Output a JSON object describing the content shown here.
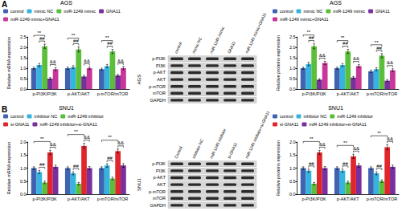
{
  "panels": [
    {
      "label": "A",
      "blot": {
        "cell_line": "AGS",
        "lanes": [
          "control",
          "mimic NC",
          "miR-1249 mimic",
          "GNA11",
          "miR-1249 mimic+GNA11"
        ],
        "rows": [
          "p-PI3K",
          "PI3K",
          "p-AKT",
          "AKT",
          "p-mTOR",
          "mTOR",
          "GAPDH"
        ]
      }
    },
    {
      "label": "B",
      "blot": {
        "cell_line": "SNU1",
        "lanes": [
          "Control",
          "inhibitor NC",
          "miR-1249 inhibitor",
          "si-GNA11",
          "miR-1249 inhibitor+si-GNA11"
        ],
        "rows": [
          "p-PI3K",
          "PI3K",
          "p-AKT",
          "AKT",
          "p-mTOR",
          "mTOR",
          "GAPDH"
        ]
      }
    }
  ],
  "chart_data": [
    {
      "type": "bar",
      "title": "AGS",
      "ylabel": "Relative mRNA expression",
      "categories": [
        "p-PI3K/PI3K",
        "p-AKT/AKT",
        "p-mTOR/mTOR"
      ],
      "series": [
        {
          "name": "control",
          "color": "#3f63b0",
          "values": [
            1.0,
            1.0,
            0.95
          ],
          "errors": [
            0.05,
            0.06,
            0.05
          ]
        },
        {
          "name": "mimic NC",
          "color": "#34b4e0",
          "values": [
            1.15,
            1.05,
            1.1
          ],
          "errors": [
            0.08,
            0.07,
            0.08
          ]
        },
        {
          "name": "miR-1249 mimic",
          "color": "#5cbf3c",
          "values": [
            2.05,
            1.9,
            1.8
          ],
          "errors": [
            0.1,
            0.12,
            0.1
          ]
        },
        {
          "name": "GNA11",
          "color": "#7a2f9e",
          "values": [
            0.5,
            0.6,
            0.65
          ],
          "errors": [
            0.05,
            0.06,
            0.05
          ]
        },
        {
          "name": "miR-1249 mimic+GNA11",
          "color": "#c8369a",
          "values": [
            0.95,
            1.0,
            1.0
          ],
          "errors": [
            0.07,
            0.06,
            0.08
          ]
        }
      ],
      "ylim": [
        0,
        2.5
      ],
      "yticks": [
        {
          "value": 0,
          "label": "0.0"
        },
        0.5,
        {
          "value": 1,
          "label": "1.0"
        },
        1.5,
        {
          "value": 2,
          "label": "2.0"
        },
        2.5
      ],
      "grid": false,
      "legend": "top",
      "annotations": [
        {
          "category": "p-PI3K/PI3K",
          "from": "control",
          "to": "miR-1249 mimic",
          "label": "**"
        },
        {
          "category": "p-PI3K/PI3K",
          "from": "mimic NC",
          "to": "miR-1249 mimic",
          "label": "##"
        },
        {
          "category": "p-PI3K/PI3K",
          "from": "GNA11",
          "to": "miR-1249 mimic+GNA11",
          "label": "&&"
        },
        {
          "category": "p-AKT/AKT",
          "from": "control",
          "to": "miR-1249 mimic",
          "label": "**"
        },
        {
          "category": "p-AKT/AKT",
          "from": "mimic NC",
          "to": "miR-1249 mimic",
          "label": "##"
        },
        {
          "category": "p-AKT/AKT",
          "from": "GNA11",
          "to": "miR-1249 mimic+GNA11",
          "label": "&&"
        },
        {
          "category": "p-mTOR/mTOR",
          "from": "control",
          "to": "miR-1249 mimic",
          "label": "**"
        },
        {
          "category": "p-mTOR/mTOR",
          "from": "mimic NC",
          "to": "miR-1249 mimic",
          "label": "##"
        },
        {
          "category": "p-mTOR/mTOR",
          "from": "GNA11",
          "to": "miR-1249 mimic+GNA11",
          "label": "&&"
        }
      ]
    },
    {
      "type": "bar",
      "title": "AGS",
      "ylabel": "Relative proteins expression",
      "categories": [
        "p-PI3K/PI3K",
        "p-AKT/AKT",
        "p-mTOR/mTOR"
      ],
      "series": [
        {
          "name": "control",
          "color": "#3f63b0",
          "values": [
            1.0,
            1.0,
            0.85
          ],
          "errors": [
            0.05,
            0.05,
            0.06
          ]
        },
        {
          "name": "mimic NC",
          "color": "#34b4e0",
          "values": [
            1.2,
            1.15,
            0.95
          ],
          "errors": [
            0.08,
            0.07,
            0.07
          ]
        },
        {
          "name": "miR-1249 mimic",
          "color": "#5cbf3c",
          "values": [
            2.05,
            1.8,
            1.6
          ],
          "errors": [
            0.12,
            0.1,
            0.1
          ]
        },
        {
          "name": "GNA11",
          "color": "#7a2f9e",
          "values": [
            0.45,
            0.55,
            0.4
          ],
          "errors": [
            0.05,
            0.05,
            0.05
          ]
        },
        {
          "name": "miR-1249 mimic+GNA11",
          "color": "#c8369a",
          "values": [
            1.25,
            1.1,
            0.9
          ],
          "errors": [
            0.08,
            0.07,
            0.07
          ]
        }
      ],
      "ylim": [
        0,
        2.5
      ],
      "yticks": [
        {
          "value": 0,
          "label": "0.0"
        },
        0.5,
        {
          "value": 1,
          "label": "1.0"
        },
        1.5,
        {
          "value": 2,
          "label": "2.0"
        },
        2.5
      ],
      "grid": false,
      "legend": "top",
      "annotations": [
        {
          "category": "p-PI3K/PI3K",
          "from": "control",
          "to": "miR-1249 mimic",
          "label": "**"
        },
        {
          "category": "p-PI3K/PI3K",
          "from": "mimic NC",
          "to": "miR-1249 mimic",
          "label": "##"
        },
        {
          "category": "p-PI3K/PI3K",
          "from": "GNA11",
          "to": "miR-1249 mimic+GNA11",
          "label": "&&"
        },
        {
          "category": "p-AKT/AKT",
          "from": "control",
          "to": "miR-1249 mimic",
          "label": "**"
        },
        {
          "category": "p-AKT/AKT",
          "from": "mimic NC",
          "to": "miR-1249 mimic",
          "label": "##"
        },
        {
          "category": "p-AKT/AKT",
          "from": "GNA11",
          "to": "miR-1249 mimic+GNA11",
          "label": "&&"
        },
        {
          "category": "p-mTOR/mTOR",
          "from": "control",
          "to": "miR-1249 mimic",
          "label": "**"
        },
        {
          "category": "p-mTOR/mTOR",
          "from": "mimic NC",
          "to": "miR-1249 mimic",
          "label": "##"
        },
        {
          "category": "p-mTOR/mTOR",
          "from": "GNA11",
          "to": "miR-1249 mimic+GNA11",
          "label": "&&"
        }
      ]
    },
    {
      "type": "bar",
      "title": "SNU1",
      "ylabel": "Relative mRNA expression",
      "categories": [
        "p-PI3K/PI3K",
        "p-AKT/AKT",
        "p-mTOR/mTOR"
      ],
      "series": [
        {
          "name": "control",
          "color": "#3f63b0",
          "values": [
            1.0,
            1.0,
            1.0
          ],
          "errors": [
            0.05,
            0.05,
            0.05
          ]
        },
        {
          "name": "inhibitor NC",
          "color": "#34b4e0",
          "values": [
            0.85,
            0.8,
            1.1
          ],
          "errors": [
            0.06,
            0.06,
            0.07
          ]
        },
        {
          "name": "miR-1249 inhibitor",
          "color": "#5cbf3c",
          "values": [
            0.45,
            0.4,
            0.6
          ],
          "errors": [
            0.05,
            0.05,
            0.05
          ]
        },
        {
          "name": "si-GNA11",
          "color": "#e0262b",
          "values": [
            1.6,
            1.85,
            1.65
          ],
          "errors": [
            0.08,
            0.1,
            0.08
          ]
        },
        {
          "name": "miR-1249 inhibitor+si-GNA11",
          "color": "#7a2f9e",
          "values": [
            1.05,
            1.0,
            1.1
          ],
          "errors": [
            0.06,
            0.06,
            0.07
          ]
        }
      ],
      "ylim": [
        0,
        2
      ],
      "yticks": [
        {
          "value": 0,
          "label": "0.0"
        },
        0.5,
        {
          "value": 1,
          "label": "1.0"
        },
        1.5,
        {
          "value": 2,
          "label": "2.0"
        }
      ],
      "grid": false,
      "legend": "top",
      "annotations": [
        {
          "category": "p-PI3K/PI3K",
          "from": "control",
          "to": "si-GNA11",
          "label": "**"
        },
        {
          "category": "p-PI3K/PI3K",
          "from": "inhibitor NC",
          "to": "miR-1249 inhibitor",
          "label": "##"
        },
        {
          "category": "p-PI3K/PI3K",
          "from": "si-GNA11",
          "to": "miR-1249 inhibitor+si-GNA11",
          "label": "&&"
        },
        {
          "category": "p-AKT/AKT",
          "from": "control",
          "to": "si-GNA11",
          "label": "**"
        },
        {
          "category": "p-AKT/AKT",
          "from": "inhibitor NC",
          "to": "miR-1249 inhibitor",
          "label": "##"
        },
        {
          "category": "p-AKT/AKT",
          "from": "si-GNA11",
          "to": "miR-1249 inhibitor+si-GNA11",
          "label": "&&"
        },
        {
          "category": "p-mTOR/mTOR",
          "from": "control",
          "to": "si-GNA11",
          "label": "**"
        },
        {
          "category": "p-mTOR/mTOR",
          "from": "inhibitor NC",
          "to": "miR-1249 inhibitor",
          "label": "##"
        },
        {
          "category": "p-mTOR/mTOR",
          "from": "si-GNA11",
          "to": "miR-1249 inhibitor+si-GNA11",
          "label": "&&"
        }
      ]
    },
    {
      "type": "bar",
      "title": "SNU1",
      "ylabel": "Relative proteins expression",
      "categories": [
        "p-PI3K/PI3K",
        "p-AKT/AKT",
        "p-mTOR/mTOR"
      ],
      "series": [
        {
          "name": "control",
          "color": "#3f63b0",
          "values": [
            1.0,
            1.0,
            1.0
          ],
          "errors": [
            0.05,
            0.05,
            0.05
          ]
        },
        {
          "name": "inhibitor NC",
          "color": "#34b4e0",
          "values": [
            0.9,
            0.9,
            0.8
          ],
          "errors": [
            0.06,
            0.06,
            0.06
          ]
        },
        {
          "name": "miR-1249 inhibitor",
          "color": "#5cbf3c",
          "values": [
            0.4,
            0.45,
            0.5
          ],
          "errors": [
            0.05,
            0.05,
            0.05
          ]
        },
        {
          "name": "si-GNA11",
          "color": "#e0262b",
          "values": [
            1.6,
            1.45,
            1.8
          ],
          "errors": [
            0.08,
            0.08,
            0.1
          ]
        },
        {
          "name": "miR-1249 inhibitor+si-GNA11",
          "color": "#7a2f9e",
          "values": [
            1.0,
            1.1,
            1.05
          ],
          "errors": [
            0.06,
            0.07,
            0.06
          ]
        }
      ],
      "ylim": [
        0,
        2
      ],
      "yticks": [
        {
          "value": 0,
          "label": "0.0"
        },
        0.5,
        {
          "value": 1,
          "label": "1.0"
        },
        1.5,
        {
          "value": 2,
          "label": "2.0"
        }
      ],
      "grid": false,
      "legend": "top",
      "annotations": [
        {
          "category": "p-PI3K/PI3K",
          "from": "control",
          "to": "si-GNA11",
          "label": "**"
        },
        {
          "category": "p-PI3K/PI3K",
          "from": "inhibitor NC",
          "to": "miR-1249 inhibitor",
          "label": "##"
        },
        {
          "category": "p-PI3K/PI3K",
          "from": "si-GNA11",
          "to": "miR-1249 inhibitor+si-GNA11",
          "label": "&&"
        },
        {
          "category": "p-AKT/AKT",
          "from": "control",
          "to": "si-GNA11",
          "label": "**"
        },
        {
          "category": "p-AKT/AKT",
          "from": "inhibitor NC",
          "to": "miR-1249 inhibitor",
          "label": "##"
        },
        {
          "category": "p-AKT/AKT",
          "from": "si-GNA11",
          "to": "miR-1249 inhibitor+si-GNA11",
          "label": "&&"
        },
        {
          "category": "p-mTOR/mTOR",
          "from": "control",
          "to": "si-GNA11",
          "label": "**"
        },
        {
          "category": "p-mTOR/mTOR",
          "from": "inhibitor NC",
          "to": "miR-1249 inhibitor",
          "label": "##"
        },
        {
          "category": "p-mTOR/mTOR",
          "from": "si-GNA11",
          "to": "miR-1249 inhibitor+si-GNA11",
          "label": "&&"
        }
      ]
    }
  ]
}
